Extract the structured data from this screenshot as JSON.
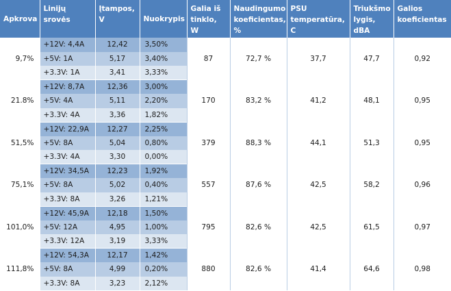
{
  "headers": [
    "Apkrova",
    "Linijų srovės",
    "Įtampos, V",
    "Nuokrypis",
    "Galia iš tinklo, W",
    "Naudingumo koeficientas, %",
    "PSU temperatūra, C",
    "Triukšmo lygis, dBA",
    "Galios koeficientas"
  ],
  "groups": [
    {
      "load": "9,7%",
      "power": "87",
      "efficiency": "72,7 %",
      "temp": "37,7",
      "noise": "47,7",
      "pf": "0,92",
      "rails": [
        {
          "line": "+12V: 4,4A",
          "voltage": "12,42",
          "deviation": "3,50%"
        },
        {
          "line": "+5V: 1A",
          "voltage": "5,17",
          "deviation": "3,40%"
        },
        {
          "line": "+3.3V: 1A",
          "voltage": "3,41",
          "deviation": "3,33%"
        }
      ]
    },
    {
      "load": "21.8%",
      "power": "170",
      "efficiency": "83,2 %",
      "temp": "41,2",
      "noise": "48,1",
      "pf": "0,95",
      "rails": [
        {
          "line": "+12V: 8,7A",
          "voltage": "12,36",
          "deviation": "3,00%"
        },
        {
          "line": "+5V: 4A",
          "voltage": "5,11",
          "deviation": "2,20%"
        },
        {
          "line": "+3.3V: 4A",
          "voltage": "3,36",
          "deviation": "1,82%"
        }
      ]
    },
    {
      "load": "51,5%",
      "power": "379",
      "efficiency": "88,3 %",
      "temp": "44,1",
      "noise": "51,3",
      "pf": "0,95",
      "rails": [
        {
          "line": "+12V: 22,9A",
          "voltage": "12,27",
          "deviation": "2,25%"
        },
        {
          "line": "+5V: 8A",
          "voltage": "5,04",
          "deviation": "0,80%"
        },
        {
          "line": "+3.3V: 4A",
          "voltage": "3,30",
          "deviation": "0,00%"
        }
      ]
    },
    {
      "load": "75,1%",
      "power": "557",
      "efficiency": "87,6 %",
      "temp": "42,5",
      "noise": "58,2",
      "pf": "0,96",
      "rails": [
        {
          "line": "+12V: 34,5A",
          "voltage": "12,23",
          "deviation": "1,92%"
        },
        {
          "line": "+5V: 8A",
          "voltage": "5,02",
          "deviation": "0,40%"
        },
        {
          "line": "+3.3V: 8A",
          "voltage": "3,26",
          "deviation": "1,21%"
        }
      ]
    },
    {
      "load": "101,0%",
      "power": "795",
      "efficiency": "82,6 %",
      "temp": "42,5",
      "noise": "61,5",
      "pf": "0,97",
      "rails": [
        {
          "line": "+12V: 45,9A",
          "voltage": "12,18",
          "deviation": "1,50%"
        },
        {
          "line": "+5V: 12A",
          "voltage": "4,95",
          "deviation": "1,00%"
        },
        {
          "line": "+3.3V: 12A",
          "voltage": "3,19",
          "deviation": "3,33%"
        }
      ]
    },
    {
      "load": "111,8%",
      "power": "880",
      "efficiency": "82,6 %",
      "temp": "41,4",
      "noise": "64,6",
      "pf": "0,98",
      "rails": [
        {
          "line": "+12V: 54,3A",
          "voltage": "12,17",
          "deviation": "1,42%"
        },
        {
          "line": "+5V: 8A",
          "voltage": "4,99",
          "deviation": "0,20%"
        },
        {
          "line": "+3.3V: 8A",
          "voltage": "3,23",
          "deviation": "2,12%"
        }
      ]
    }
  ]
}
